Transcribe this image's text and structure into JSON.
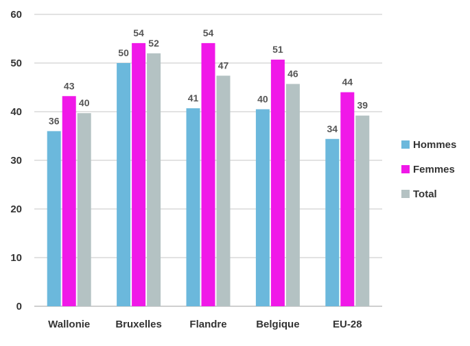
{
  "chart_data": {
    "type": "bar",
    "title": "",
    "xlabel": "",
    "ylabel": "",
    "ylim": [
      0,
      60
    ],
    "yticks": [
      0,
      10,
      20,
      30,
      40,
      50,
      60
    ],
    "grid": true,
    "legend_position": "right",
    "categories": [
      "Wallonie",
      "Bruxelles",
      "Flandre",
      "Belgique",
      "EU-28"
    ],
    "series": [
      {
        "name": "Hommes",
        "color": "#6bb8dc",
        "values": [
          36,
          50,
          40.7,
          40.5,
          34.4
        ],
        "labels": [
          "36",
          "50",
          "41",
          "40",
          "34"
        ]
      },
      {
        "name": "Femmes",
        "color": "#f018e8",
        "values": [
          43.2,
          54.1,
          54.1,
          50.7,
          44
        ],
        "labels": [
          "43",
          "54",
          "54",
          "51",
          "44"
        ]
      },
      {
        "name": "Total",
        "color": "#b4c2c3",
        "values": [
          39.7,
          52,
          47.4,
          45.7,
          39.2
        ],
        "labels": [
          "40",
          "52",
          "47",
          "46",
          "39"
        ]
      }
    ]
  }
}
